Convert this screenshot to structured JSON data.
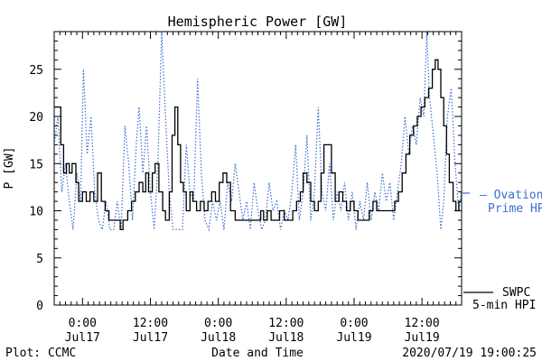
{
  "chart_data": {
    "type": "line",
    "title": "Hemispheric Power [GW]",
    "xlabel": "Date and Time",
    "ylabel": "P [GW]",
    "xlim": [
      "2020-07-16T19:00",
      "2020-07-19T19:00"
    ],
    "ylim": [
      0,
      29
    ],
    "y_ticks": [
      "0",
      "5",
      "10",
      "15",
      "20",
      "25"
    ],
    "x_ticks": [
      {
        "time": "2020-07-17T00:00",
        "label_top": "0:00",
        "label_bottom": "Jul17"
      },
      {
        "time": "2020-07-17T12:00",
        "label_top": "12:00",
        "label_bottom": "Jul17"
      },
      {
        "time": "2020-07-18T00:00",
        "label_top": "0:00",
        "label_bottom": "Jul18"
      },
      {
        "time": "2020-07-18T12:00",
        "label_top": "12:00",
        "label_bottom": "Jul18"
      },
      {
        "time": "2020-07-19T00:00",
        "label_top": "0:00",
        "label_bottom": "Jul19"
      },
      {
        "time": "2020-07-19T12:00",
        "label_top": "12:00",
        "label_bottom": "Jul19"
      }
    ],
    "grid": false,
    "series": [
      {
        "name": "SWPC 5-min HPI",
        "legend_lines": [
          "SWPC",
          "5-min HPI"
        ],
        "color": "#000000",
        "style": "solid",
        "points": [
          [
            "2020-07-16T19:00",
            21
          ],
          [
            "2020-07-16T19:40",
            21
          ],
          [
            "2020-07-16T20:10",
            17
          ],
          [
            "2020-07-16T20:40",
            14
          ],
          [
            "2020-07-16T21:10",
            15
          ],
          [
            "2020-07-16T21:40",
            14
          ],
          [
            "2020-07-16T22:10",
            15
          ],
          [
            "2020-07-16T22:50",
            13
          ],
          [
            "2020-07-16T23:20",
            11
          ],
          [
            "2020-07-17T00:00",
            12
          ],
          [
            "2020-07-17T00:40",
            11
          ],
          [
            "2020-07-17T01:20",
            12
          ],
          [
            "2020-07-17T02:00",
            11
          ],
          [
            "2020-07-17T02:40",
            14
          ],
          [
            "2020-07-17T03:20",
            11
          ],
          [
            "2020-07-17T04:00",
            10
          ],
          [
            "2020-07-17T04:40",
            9
          ],
          [
            "2020-07-17T06:00",
            9
          ],
          [
            "2020-07-17T06:40",
            8
          ],
          [
            "2020-07-17T07:10",
            9
          ],
          [
            "2020-07-17T08:00",
            10
          ],
          [
            "2020-07-17T08:40",
            11
          ],
          [
            "2020-07-17T09:20",
            12
          ],
          [
            "2020-07-17T10:00",
            13
          ],
          [
            "2020-07-17T10:40",
            12
          ],
          [
            "2020-07-17T11:10",
            14
          ],
          [
            "2020-07-17T11:40",
            12
          ],
          [
            "2020-07-17T12:20",
            14
          ],
          [
            "2020-07-17T12:50",
            15
          ],
          [
            "2020-07-17T13:30",
            12
          ],
          [
            "2020-07-17T14:10",
            10
          ],
          [
            "2020-07-17T14:40",
            9
          ],
          [
            "2020-07-17T15:20",
            12
          ],
          [
            "2020-07-17T15:50",
            18
          ],
          [
            "2020-07-17T16:20",
            21
          ],
          [
            "2020-07-17T16:50",
            17
          ],
          [
            "2020-07-17T17:20",
            13
          ],
          [
            "2020-07-17T17:50",
            12
          ],
          [
            "2020-07-17T18:20",
            10
          ],
          [
            "2020-07-17T19:00",
            12
          ],
          [
            "2020-07-17T19:30",
            11
          ],
          [
            "2020-07-17T20:10",
            10
          ],
          [
            "2020-07-17T20:50",
            11
          ],
          [
            "2020-07-17T21:30",
            10
          ],
          [
            "2020-07-17T22:10",
            11
          ],
          [
            "2020-07-17T22:50",
            12
          ],
          [
            "2020-07-17T23:30",
            11
          ],
          [
            "2020-07-18T00:10",
            13
          ],
          [
            "2020-07-18T00:50",
            14
          ],
          [
            "2020-07-18T01:30",
            13
          ],
          [
            "2020-07-18T02:10",
            10
          ],
          [
            "2020-07-18T03:00",
            9
          ],
          [
            "2020-07-18T07:00",
            9
          ],
          [
            "2020-07-18T07:30",
            10
          ],
          [
            "2020-07-18T08:00",
            9
          ],
          [
            "2020-07-18T08:40",
            10
          ],
          [
            "2020-07-18T09:20",
            9
          ],
          [
            "2020-07-18T10:10",
            9
          ],
          [
            "2020-07-18T10:50",
            10
          ],
          [
            "2020-07-18T11:40",
            9
          ],
          [
            "2020-07-18T12:30",
            9
          ],
          [
            "2020-07-18T13:10",
            10
          ],
          [
            "2020-07-18T13:50",
            11
          ],
          [
            "2020-07-18T14:30",
            12
          ],
          [
            "2020-07-18T15:00",
            14
          ],
          [
            "2020-07-18T15:40",
            13
          ],
          [
            "2020-07-18T16:20",
            11
          ],
          [
            "2020-07-18T17:00",
            10
          ],
          [
            "2020-07-18T17:40",
            11
          ],
          [
            "2020-07-18T18:10",
            14
          ],
          [
            "2020-07-18T18:40",
            17
          ],
          [
            "2020-07-18T19:30",
            17
          ],
          [
            "2020-07-18T20:00",
            14
          ],
          [
            "2020-07-18T20:40",
            11
          ],
          [
            "2020-07-18T21:20",
            12
          ],
          [
            "2020-07-18T22:00",
            11
          ],
          [
            "2020-07-18T22:40",
            10
          ],
          [
            "2020-07-18T23:20",
            11
          ],
          [
            "2020-07-19T00:00",
            10
          ],
          [
            "2020-07-19T00:40",
            9
          ],
          [
            "2020-07-19T02:00",
            9
          ],
          [
            "2020-07-19T02:40",
            10
          ],
          [
            "2020-07-19T03:20",
            11
          ],
          [
            "2020-07-19T04:00",
            10
          ],
          [
            "2020-07-19T06:30",
            10
          ],
          [
            "2020-07-19T07:10",
            11
          ],
          [
            "2020-07-19T07:50",
            12
          ],
          [
            "2020-07-19T08:30",
            14
          ],
          [
            "2020-07-19T09:10",
            16
          ],
          [
            "2020-07-19T09:50",
            18
          ],
          [
            "2020-07-19T10:30",
            19
          ],
          [
            "2020-07-19T11:10",
            20
          ],
          [
            "2020-07-19T11:50",
            21
          ],
          [
            "2020-07-19T12:30",
            22
          ],
          [
            "2020-07-19T13:10",
            23
          ],
          [
            "2020-07-19T13:50",
            25
          ],
          [
            "2020-07-19T14:20",
            26
          ],
          [
            "2020-07-19T14:50",
            25
          ],
          [
            "2020-07-19T15:20",
            22
          ],
          [
            "2020-07-19T15:50",
            19
          ],
          [
            "2020-07-19T16:20",
            16
          ],
          [
            "2020-07-19T16:50",
            13
          ],
          [
            "2020-07-19T17:30",
            11
          ],
          [
            "2020-07-19T18:00",
            10
          ],
          [
            "2020-07-19T18:30",
            11
          ],
          [
            "2020-07-19T19:00",
            12
          ]
        ]
      },
      {
        "name": "Ovation Prime HPI",
        "legend_lines": [
          "– Ovation",
          "Prime HPI"
        ],
        "color": "#3a6fcf",
        "style": "dotted",
        "points": [
          [
            "2020-07-16T19:00",
            17
          ],
          [
            "2020-07-16T19:40",
            20
          ],
          [
            "2020-07-16T20:20",
            12
          ],
          [
            "2020-07-16T21:00",
            15
          ],
          [
            "2020-07-16T21:40",
            11
          ],
          [
            "2020-07-16T22:20",
            8
          ],
          [
            "2020-07-16T23:00",
            14
          ],
          [
            "2020-07-16T23:40",
            11
          ],
          [
            "2020-07-17T00:10",
            25
          ],
          [
            "2020-07-17T00:50",
            16
          ],
          [
            "2020-07-17T01:30",
            20
          ],
          [
            "2020-07-17T02:10",
            12
          ],
          [
            "2020-07-17T02:50",
            9
          ],
          [
            "2020-07-17T03:30",
            8
          ],
          [
            "2020-07-17T04:10",
            11
          ],
          [
            "2020-07-17T04:50",
            8
          ],
          [
            "2020-07-17T05:30",
            8
          ],
          [
            "2020-07-17T06:10",
            11
          ],
          [
            "2020-07-17T06:50",
            8
          ],
          [
            "2020-07-17T07:30",
            19
          ],
          [
            "2020-07-17T08:10",
            15
          ],
          [
            "2020-07-17T08:50",
            9
          ],
          [
            "2020-07-17T09:30",
            17
          ],
          [
            "2020-07-17T10:00",
            21
          ],
          [
            "2020-07-17T10:40",
            14
          ],
          [
            "2020-07-17T11:20",
            19
          ],
          [
            "2020-07-17T12:00",
            12
          ],
          [
            "2020-07-17T12:40",
            8
          ],
          [
            "2020-07-17T13:20",
            15
          ],
          [
            "2020-07-17T14:00",
            29
          ],
          [
            "2020-07-17T14:40",
            20
          ],
          [
            "2020-07-17T15:20",
            12
          ],
          [
            "2020-07-17T16:00",
            8
          ],
          [
            "2020-07-17T17:40",
            8
          ],
          [
            "2020-07-17T18:20",
            17
          ],
          [
            "2020-07-17T19:00",
            12
          ],
          [
            "2020-07-17T19:40",
            11
          ],
          [
            "2020-07-17T20:20",
            24
          ],
          [
            "2020-07-17T21:00",
            14
          ],
          [
            "2020-07-17T21:40",
            9
          ],
          [
            "2020-07-17T22:20",
            8
          ],
          [
            "2020-07-17T23:00",
            11
          ],
          [
            "2020-07-17T23:40",
            9
          ],
          [
            "2020-07-18T00:20",
            11
          ],
          [
            "2020-07-18T01:00",
            8
          ],
          [
            "2020-07-18T01:40",
            13
          ],
          [
            "2020-07-18T02:20",
            11
          ],
          [
            "2020-07-18T03:00",
            15
          ],
          [
            "2020-07-18T03:40",
            12
          ],
          [
            "2020-07-18T04:20",
            9
          ],
          [
            "2020-07-18T05:00",
            11
          ],
          [
            "2020-07-18T05:40",
            8
          ],
          [
            "2020-07-18T06:20",
            13
          ],
          [
            "2020-07-18T07:00",
            10
          ],
          [
            "2020-07-18T07:40",
            8
          ],
          [
            "2020-07-18T08:20",
            9
          ],
          [
            "2020-07-18T09:00",
            13
          ],
          [
            "2020-07-18T09:40",
            10
          ],
          [
            "2020-07-18T10:20",
            11
          ],
          [
            "2020-07-18T11:00",
            8
          ],
          [
            "2020-07-18T11:40",
            10
          ],
          [
            "2020-07-18T12:20",
            9
          ],
          [
            "2020-07-18T13:00",
            12
          ],
          [
            "2020-07-18T13:40",
            17
          ],
          [
            "2020-07-18T14:20",
            9
          ],
          [
            "2020-07-18T15:00",
            12
          ],
          [
            "2020-07-18T15:40",
            18
          ],
          [
            "2020-07-18T16:20",
            9
          ],
          [
            "2020-07-18T17:00",
            12
          ],
          [
            "2020-07-18T17:40",
            21
          ],
          [
            "2020-07-18T18:20",
            12
          ],
          [
            "2020-07-18T19:00",
            10
          ],
          [
            "2020-07-18T19:40",
            15
          ],
          [
            "2020-07-18T20:20",
            9
          ],
          [
            "2020-07-18T21:00",
            12
          ],
          [
            "2020-07-18T21:40",
            10
          ],
          [
            "2020-07-18T22:20",
            13
          ],
          [
            "2020-07-18T23:00",
            9
          ],
          [
            "2020-07-18T23:40",
            12
          ],
          [
            "2020-07-19T00:20",
            8
          ],
          [
            "2020-07-19T01:00",
            11
          ],
          [
            "2020-07-19T01:40",
            9
          ],
          [
            "2020-07-19T02:20",
            13
          ],
          [
            "2020-07-19T03:00",
            9
          ],
          [
            "2020-07-19T03:40",
            12
          ],
          [
            "2020-07-19T04:20",
            10
          ],
          [
            "2020-07-19T05:00",
            14
          ],
          [
            "2020-07-19T05:40",
            11
          ],
          [
            "2020-07-19T06:20",
            13
          ],
          [
            "2020-07-19T07:00",
            9
          ],
          [
            "2020-07-19T07:40",
            12
          ],
          [
            "2020-07-19T08:20",
            15
          ],
          [
            "2020-07-19T09:00",
            20
          ],
          [
            "2020-07-19T09:40",
            16
          ],
          [
            "2020-07-19T10:20",
            19
          ],
          [
            "2020-07-19T11:00",
            17
          ],
          [
            "2020-07-19T11:40",
            22
          ],
          [
            "2020-07-19T12:20",
            20
          ],
          [
            "2020-07-19T12:50",
            29
          ],
          [
            "2020-07-19T13:20",
            22
          ],
          [
            "2020-07-19T14:00",
            18
          ],
          [
            "2020-07-19T14:40",
            14
          ],
          [
            "2020-07-19T15:20",
            8
          ],
          [
            "2020-07-19T15:50",
            11
          ],
          [
            "2020-07-19T16:30",
            20
          ],
          [
            "2020-07-19T17:10",
            23
          ],
          [
            "2020-07-19T17:50",
            15
          ],
          [
            "2020-07-19T18:30",
            10
          ],
          [
            "2020-07-19T19:00",
            12
          ]
        ]
      }
    ]
  },
  "footer": {
    "plot_credit": "Plot: CCMC",
    "timestamp": "2020/07/19 19:00:25"
  }
}
